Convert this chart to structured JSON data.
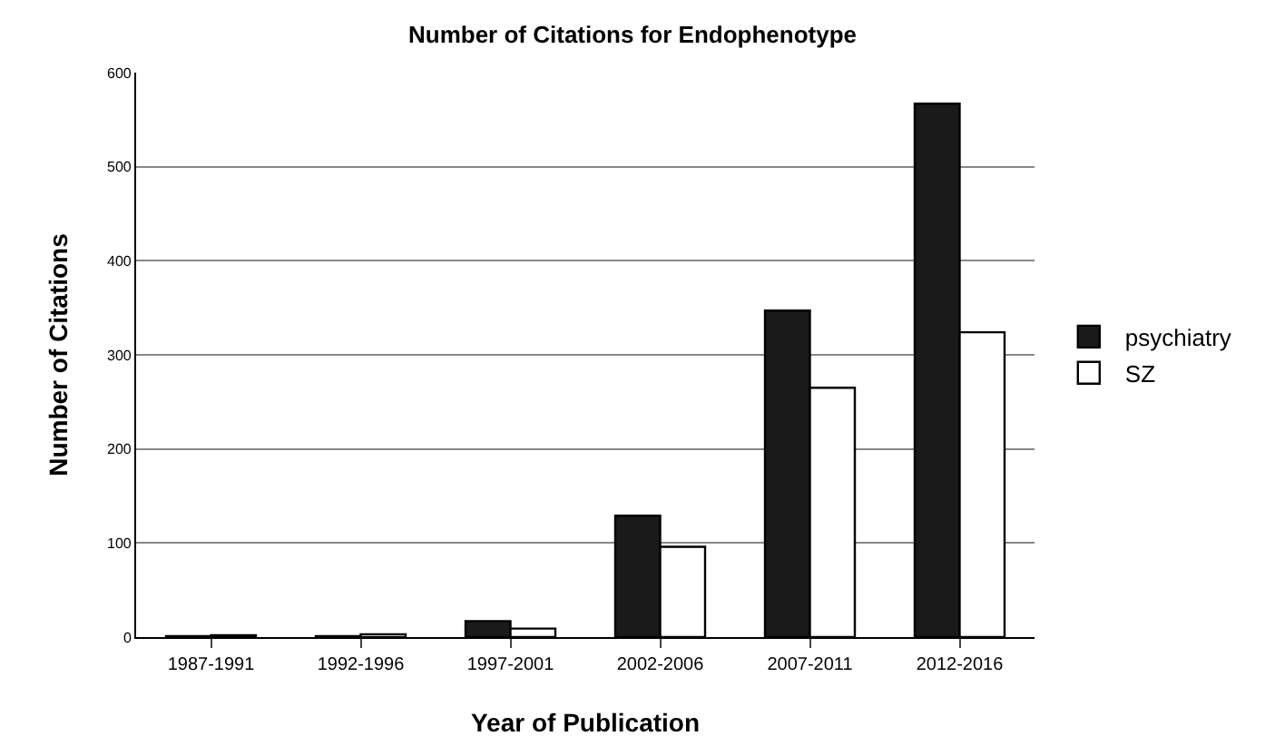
{
  "chart_data": {
    "type": "bar",
    "title": "Number of Citations for Endophenotype",
    "xlabel": "Year of Publication",
    "ylabel": "Number of Citations",
    "categories": [
      "1987-1991",
      "1992-1996",
      "1997-2001",
      "2002-2006",
      "2007-2011",
      "2012-2016"
    ],
    "series": [
      {
        "name": "psychiatry",
        "color": "#1a1a1a",
        "values": [
          1,
          1,
          17,
          129,
          347,
          567
        ]
      },
      {
        "name": "SZ",
        "color": "#ffffff",
        "values": [
          2,
          3,
          9,
          96,
          265,
          324
        ]
      }
    ],
    "ylim": [
      0,
      600
    ],
    "yticks": [
      0,
      100,
      200,
      300,
      400,
      500,
      600
    ],
    "grid": "y",
    "legend": "right"
  }
}
